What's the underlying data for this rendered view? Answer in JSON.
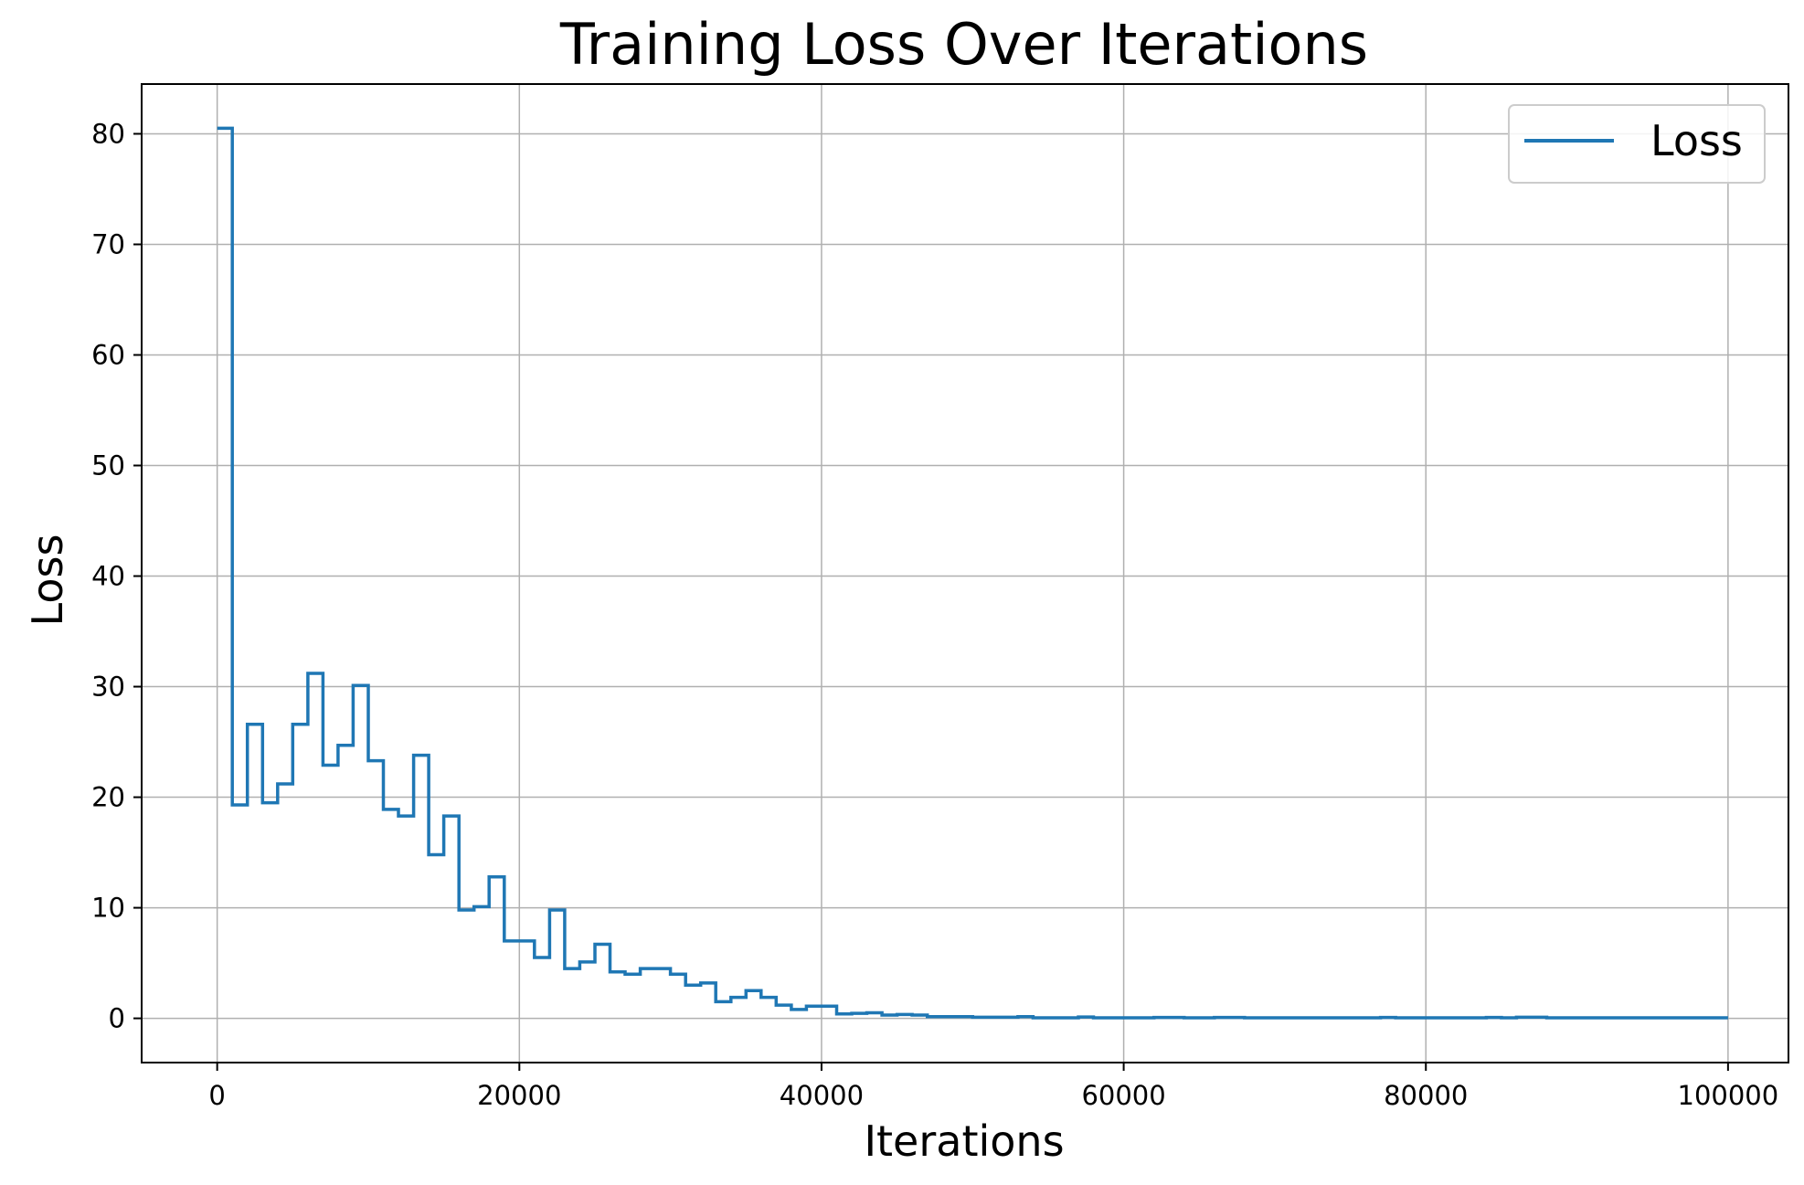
{
  "chart_data": {
    "type": "line",
    "step": "post",
    "title": "Training Loss Over Iterations",
    "xlabel": "Iterations",
    "ylabel": "Loss",
    "xlim": [
      -5000,
      104000
    ],
    "ylim": [
      -4,
      84.5
    ],
    "grid": true,
    "legend_position": "top-right",
    "x_ticks": [
      0,
      20000,
      40000,
      60000,
      80000,
      100000
    ],
    "y_ticks": [
      0,
      10,
      20,
      30,
      40,
      50,
      60,
      70,
      80
    ],
    "x_tick_labels": [
      "0",
      "20000",
      "40000",
      "60000",
      "80000",
      "100000"
    ],
    "y_tick_labels": [
      "0",
      "10",
      "20",
      "30",
      "40",
      "50",
      "60",
      "70",
      "80"
    ],
    "colors": {
      "series": "#1f77b4",
      "grid": "#b0b0b0",
      "axes": "#000000"
    },
    "series": [
      {
        "name": "Loss",
        "points": [
          [
            0,
            80.5
          ],
          [
            1000,
            19.3
          ],
          [
            2000,
            26.6
          ],
          [
            3000,
            19.5
          ],
          [
            4000,
            21.2
          ],
          [
            5000,
            26.6
          ],
          [
            6000,
            31.2
          ],
          [
            7000,
            22.9
          ],
          [
            8000,
            24.7
          ],
          [
            9000,
            30.1
          ],
          [
            10000,
            23.3
          ],
          [
            11000,
            18.9
          ],
          [
            12000,
            18.3
          ],
          [
            13000,
            23.8
          ],
          [
            14000,
            14.8
          ],
          [
            15000,
            18.3
          ],
          [
            16000,
            9.8
          ],
          [
            17000,
            10.1
          ],
          [
            18000,
            12.8
          ],
          [
            19000,
            7.0
          ],
          [
            21000,
            5.5
          ],
          [
            22000,
            9.8
          ],
          [
            23000,
            4.5
          ],
          [
            24000,
            5.1
          ],
          [
            25000,
            6.7
          ],
          [
            26000,
            4.2
          ],
          [
            27000,
            4.0
          ],
          [
            28000,
            4.5
          ],
          [
            30000,
            4.0
          ],
          [
            31000,
            3.0
          ],
          [
            32000,
            3.2
          ],
          [
            33000,
            1.5
          ],
          [
            34000,
            1.9
          ],
          [
            35000,
            2.5
          ],
          [
            36000,
            1.9
          ],
          [
            37000,
            1.2
          ],
          [
            38000,
            0.8
          ],
          [
            39000,
            1.1
          ],
          [
            41000,
            0.4
          ],
          [
            42000,
            0.45
          ],
          [
            43000,
            0.5
          ],
          [
            44000,
            0.3
          ],
          [
            45000,
            0.35
          ],
          [
            46000,
            0.3
          ],
          [
            47000,
            0.15
          ],
          [
            50000,
            0.1
          ],
          [
            53000,
            0.15
          ],
          [
            54000,
            0.05
          ],
          [
            57000,
            0.12
          ],
          [
            58000,
            0.05
          ],
          [
            62000,
            0.08
          ],
          [
            64000,
            0.05
          ],
          [
            66000,
            0.08
          ],
          [
            68000,
            0.05
          ],
          [
            73000,
            0.05
          ],
          [
            77000,
            0.08
          ],
          [
            78000,
            0.05
          ],
          [
            84000,
            0.08
          ],
          [
            85000,
            0.05
          ],
          [
            86000,
            0.1
          ],
          [
            88000,
            0.05
          ],
          [
            99000,
            0.05
          ]
        ]
      }
    ]
  }
}
